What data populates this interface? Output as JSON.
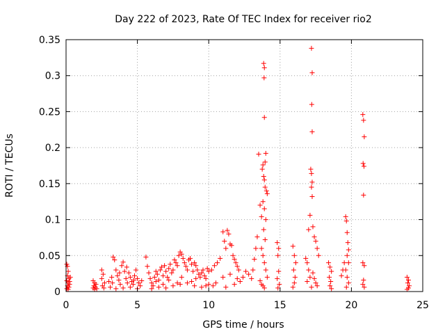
{
  "chart_data": {
    "type": "scatter",
    "title": "Day 222 of 2023, Rate Of TEC Index for receiver rio2",
    "xlabel": "GPS time / hours",
    "ylabel": "ROTI / TECUs",
    "xlim": [
      0,
      25
    ],
    "ylim": [
      0,
      0.35
    ],
    "x_ticks": [
      0,
      5,
      10,
      15,
      20,
      25
    ],
    "x_tick_labels": [
      "0",
      "5",
      "10",
      "15",
      "20",
      "25"
    ],
    "y_ticks": [
      0,
      0.05,
      0.1,
      0.15,
      0.2,
      0.25,
      0.3,
      0.35
    ],
    "y_tick_labels": [
      "0",
      "0.05",
      "0.1",
      "0.15",
      "0.2",
      "0.25",
      "0.3",
      "0.35"
    ],
    "grid": true,
    "marker": "+",
    "marker_color": "#ff0000",
    "grid_color": "#a0a0a0",
    "points": [
      [
        0.05,
        0.038
      ],
      [
        0.1,
        0.035
      ],
      [
        0.15,
        0.028
      ],
      [
        0.1,
        0.022
      ],
      [
        0.2,
        0.018
      ],
      [
        0.05,
        0.015
      ],
      [
        0.15,
        0.012
      ],
      [
        0.25,
        0.01
      ],
      [
        0.1,
        0.008
      ],
      [
        0.2,
        0.006
      ],
      [
        0.05,
        0.004
      ],
      [
        0.15,
        0.003
      ],
      [
        0.3,
        0.02
      ],
      [
        0.25,
        0.014
      ],
      [
        1.9,
        0.015
      ],
      [
        2.0,
        0.012
      ],
      [
        2.1,
        0.01
      ],
      [
        1.95,
        0.008
      ],
      [
        2.05,
        0.006
      ],
      [
        2.15,
        0.004
      ],
      [
        2.0,
        0.003
      ],
      [
        1.9,
        0.005
      ],
      [
        2.5,
        0.03
      ],
      [
        2.6,
        0.024
      ],
      [
        2.5,
        0.018
      ],
      [
        2.7,
        0.012
      ],
      [
        2.55,
        0.008
      ],
      [
        2.65,
        0.005
      ],
      [
        3.0,
        0.014
      ],
      [
        3.2,
        0.02
      ],
      [
        3.3,
        0.048
      ],
      [
        3.4,
        0.044
      ],
      [
        3.5,
        0.03
      ],
      [
        3.6,
        0.022
      ],
      [
        3.7,
        0.016
      ],
      [
        3.8,
        0.01
      ],
      [
        3.9,
        0.036
      ],
      [
        4.0,
        0.041
      ],
      [
        4.1,
        0.028
      ],
      [
        4.2,
        0.018
      ],
      [
        4.3,
        0.012
      ],
      [
        4.4,
        0.026
      ],
      [
        4.5,
        0.02
      ],
      [
        4.6,
        0.014
      ],
      [
        4.7,
        0.01
      ],
      [
        4.8,
        0.022
      ],
      [
        4.9,
        0.03
      ],
      [
        5.0,
        0.018
      ],
      [
        5.1,
        0.012
      ],
      [
        5.2,
        0.008
      ],
      [
        5.3,
        0.015
      ],
      [
        3.1,
        0.006
      ],
      [
        3.5,
        0.004
      ],
      [
        4.0,
        0.005
      ],
      [
        4.5,
        0.006
      ],
      [
        5.0,
        0.004
      ],
      [
        3.25,
        0.012
      ],
      [
        3.75,
        0.026
      ],
      [
        4.25,
        0.034
      ],
      [
        4.75,
        0.016
      ],
      [
        5.6,
        0.048
      ],
      [
        5.7,
        0.035
      ],
      [
        5.8,
        0.026
      ],
      [
        5.9,
        0.018
      ],
      [
        6.0,
        0.012
      ],
      [
        6.1,
        0.008
      ],
      [
        6.2,
        0.02
      ],
      [
        6.3,
        0.028
      ],
      [
        6.4,
        0.024
      ],
      [
        6.5,
        0.016
      ],
      [
        6.6,
        0.03
      ],
      [
        6.7,
        0.034
      ],
      [
        6.8,
        0.022
      ],
      [
        6.9,
        0.036
      ],
      [
        7.0,
        0.028
      ],
      [
        7.1,
        0.02
      ],
      [
        7.2,
        0.032
      ],
      [
        7.3,
        0.038
      ],
      [
        7.4,
        0.026
      ],
      [
        7.5,
        0.03
      ],
      [
        7.6,
        0.044
      ],
      [
        7.7,
        0.04
      ],
      [
        7.8,
        0.036
      ],
      [
        7.9,
        0.05
      ],
      [
        8.0,
        0.055
      ],
      [
        8.1,
        0.052
      ],
      [
        8.2,
        0.046
      ],
      [
        8.3,
        0.04
      ],
      [
        8.4,
        0.035
      ],
      [
        8.5,
        0.03
      ],
      [
        8.6,
        0.044
      ],
      [
        8.7,
        0.046
      ],
      [
        8.8,
        0.038
      ],
      [
        8.9,
        0.028
      ],
      [
        9.0,
        0.04
      ],
      [
        9.1,
        0.036
      ],
      [
        9.2,
        0.03
      ],
      [
        9.3,
        0.024
      ],
      [
        9.4,
        0.02
      ],
      [
        9.5,
        0.026
      ],
      [
        9.6,
        0.03
      ],
      [
        9.7,
        0.022
      ],
      [
        9.8,
        0.018
      ],
      [
        9.9,
        0.032
      ],
      [
        10.0,
        0.028
      ],
      [
        6.0,
        0.004
      ],
      [
        6.5,
        0.006
      ],
      [
        7.0,
        0.005
      ],
      [
        7.5,
        0.008
      ],
      [
        8.0,
        0.01
      ],
      [
        8.5,
        0.012
      ],
      [
        9.0,
        0.008
      ],
      [
        9.5,
        0.006
      ],
      [
        10.0,
        0.01
      ],
      [
        6.3,
        0.014
      ],
      [
        7.2,
        0.016
      ],
      [
        8.1,
        0.02
      ],
      [
        9.1,
        0.018
      ],
      [
        6.8,
        0.01
      ],
      [
        7.8,
        0.012
      ],
      [
        8.8,
        0.014
      ],
      [
        9.8,
        0.008
      ],
      [
        10.2,
        0.03
      ],
      [
        10.4,
        0.036
      ],
      [
        10.6,
        0.04
      ],
      [
        10.8,
        0.046
      ],
      [
        11.0,
        0.083
      ],
      [
        11.1,
        0.07
      ],
      [
        11.2,
        0.06
      ],
      [
        11.3,
        0.085
      ],
      [
        11.4,
        0.08
      ],
      [
        11.5,
        0.066
      ],
      [
        11.6,
        0.064
      ],
      [
        11.7,
        0.05
      ],
      [
        11.8,
        0.045
      ],
      [
        11.9,
        0.04
      ],
      [
        12.0,
        0.035
      ],
      [
        12.1,
        0.03
      ],
      [
        10.5,
        0.012
      ],
      [
        11.0,
        0.02
      ],
      [
        11.5,
        0.024
      ],
      [
        12.0,
        0.018
      ],
      [
        10.3,
        0.008
      ],
      [
        11.2,
        0.006
      ],
      [
        11.8,
        0.01
      ],
      [
        12.2,
        0.014
      ],
      [
        12.4,
        0.02
      ],
      [
        12.6,
        0.028
      ],
      [
        12.8,
        0.024
      ],
      [
        13.0,
        0.018
      ],
      [
        13.1,
        0.03
      ],
      [
        13.2,
        0.045
      ],
      [
        13.3,
        0.06
      ],
      [
        13.4,
        0.076
      ],
      [
        13.5,
        0.191
      ],
      [
        13.6,
        0.12
      ],
      [
        13.7,
        0.104
      ],
      [
        13.75,
        0.17
      ],
      [
        13.8,
        0.176
      ],
      [
        13.85,
        0.16
      ],
      [
        13.9,
        0.155
      ],
      [
        13.95,
        0.145
      ],
      [
        14.0,
        0.192
      ],
      [
        14.05,
        0.14
      ],
      [
        14.1,
        0.136
      ],
      [
        13.85,
        0.317
      ],
      [
        13.9,
        0.311
      ],
      [
        13.88,
        0.297
      ],
      [
        13.9,
        0.242
      ],
      [
        13.95,
        0.18
      ],
      [
        13.8,
        0.125
      ],
      [
        13.9,
        0.115
      ],
      [
        14.0,
        0.1
      ],
      [
        13.85,
        0.086
      ],
      [
        13.95,
        0.072
      ],
      [
        13.7,
        0.06
      ],
      [
        13.8,
        0.05
      ],
      [
        13.9,
        0.04
      ],
      [
        14.0,
        0.03
      ],
      [
        14.1,
        0.02
      ],
      [
        13.6,
        0.015
      ],
      [
        13.7,
        0.01
      ],
      [
        13.8,
        0.008
      ],
      [
        13.9,
        0.005
      ],
      [
        14.8,
        0.068
      ],
      [
        14.9,
        0.06
      ],
      [
        14.85,
        0.05
      ],
      [
        14.9,
        0.028
      ],
      [
        14.8,
        0.018
      ],
      [
        14.95,
        0.01
      ],
      [
        14.85,
        0.005
      ],
      [
        15.9,
        0.063
      ],
      [
        16.0,
        0.05
      ],
      [
        16.1,
        0.04
      ],
      [
        15.95,
        0.03
      ],
      [
        16.05,
        0.02
      ],
      [
        16.0,
        0.012
      ],
      [
        15.9,
        0.006
      ],
      [
        16.8,
        0.046
      ],
      [
        16.9,
        0.04
      ],
      [
        17.0,
        0.086
      ],
      [
        17.1,
        0.106
      ],
      [
        17.15,
        0.17
      ],
      [
        17.2,
        0.164
      ],
      [
        17.25,
        0.152
      ],
      [
        17.2,
        0.145
      ],
      [
        17.25,
        0.132
      ],
      [
        17.2,
        0.338
      ],
      [
        17.25,
        0.304
      ],
      [
        17.22,
        0.26
      ],
      [
        17.25,
        0.222
      ],
      [
        17.3,
        0.09
      ],
      [
        17.4,
        0.076
      ],
      [
        17.5,
        0.07
      ],
      [
        17.6,
        0.06
      ],
      [
        17.7,
        0.05
      ],
      [
        17.0,
        0.03
      ],
      [
        17.1,
        0.02
      ],
      [
        17.3,
        0.026
      ],
      [
        17.4,
        0.018
      ],
      [
        17.5,
        0.012
      ],
      [
        17.6,
        0.008
      ],
      [
        16.9,
        0.014
      ],
      [
        17.2,
        0.006
      ],
      [
        18.4,
        0.04
      ],
      [
        18.5,
        0.034
      ],
      [
        18.6,
        0.028
      ],
      [
        18.45,
        0.02
      ],
      [
        18.55,
        0.014
      ],
      [
        18.5,
        0.008
      ],
      [
        18.6,
        0.004
      ],
      [
        19.3,
        0.022
      ],
      [
        19.4,
        0.03
      ],
      [
        19.5,
        0.04
      ],
      [
        19.6,
        0.104
      ],
      [
        19.65,
        0.098
      ],
      [
        19.7,
        0.082
      ],
      [
        19.75,
        0.068
      ],
      [
        19.8,
        0.058
      ],
      [
        19.7,
        0.05
      ],
      [
        19.8,
        0.04
      ],
      [
        19.6,
        0.03
      ],
      [
        19.7,
        0.02
      ],
      [
        19.8,
        0.012
      ],
      [
        19.65,
        0.006
      ],
      [
        20.8,
        0.246
      ],
      [
        20.85,
        0.238
      ],
      [
        20.9,
        0.215
      ],
      [
        20.82,
        0.178
      ],
      [
        20.88,
        0.174
      ],
      [
        20.85,
        0.134
      ],
      [
        20.8,
        0.04
      ],
      [
        20.9,
        0.036
      ],
      [
        20.85,
        0.016
      ],
      [
        20.8,
        0.01
      ],
      [
        20.9,
        0.006
      ],
      [
        23.9,
        0.02
      ],
      [
        24.0,
        0.016
      ],
      [
        23.95,
        0.012
      ],
      [
        24.05,
        0.008
      ],
      [
        24.0,
        0.005
      ],
      [
        23.9,
        0.003
      ]
    ]
  }
}
